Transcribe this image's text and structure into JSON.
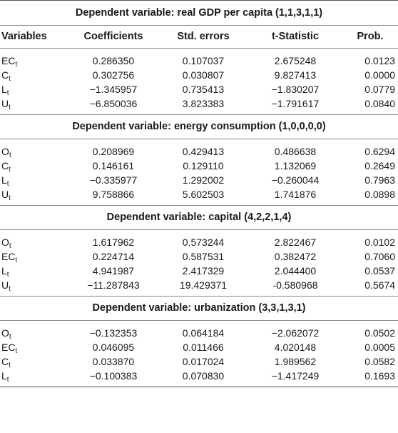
{
  "headers": {
    "variables": "Variables",
    "coefficients": "Coefficients",
    "std_errors": "Std. errors",
    "t_statistic": "t-Statistic",
    "prob": "Prob."
  },
  "sections": [
    {
      "title": "Dependent variable: real GDP per capita (1,1,3,1,1)",
      "rows": [
        {
          "var": "EC",
          "sub": "t",
          "coef": "0.286350",
          "se": "0.107037",
          "t": "2.675248",
          "p": "0.0123"
        },
        {
          "var": "C",
          "sub": "t",
          "coef": "0.302756",
          "se": "0.030807",
          "t": "9.827413",
          "p": "0.0000"
        },
        {
          "var": "L",
          "sub": "t",
          "coef": "−1.345957",
          "se": "0.735413",
          "t": "−1.830207",
          "p": "0.0779"
        },
        {
          "var": "U",
          "sub": "t",
          "coef": "−6.850036",
          "se": "3.823383",
          "t": "−1.791617",
          "p": "0.0840"
        }
      ]
    },
    {
      "title": "Dependent variable: energy consumption (1,0,0,0,0)",
      "rows": [
        {
          "var": "O",
          "sub": "t",
          "coef": "0.208969",
          "se": "0.429413",
          "t": "0.486638",
          "p": "0.6294"
        },
        {
          "var": "C",
          "sub": "t",
          "coef": "0.146161",
          "se": "0.129110",
          "t": "1.132069",
          "p": "0.2649"
        },
        {
          "var": "L",
          "sub": "t",
          "coef": "−0.335977",
          "se": "1.292002",
          "t": "−0.260044",
          "p": "0.7963"
        },
        {
          "var": "U",
          "sub": "t",
          "coef": "9.758866",
          "se": "5.602503",
          "t": "1.741876",
          "p": "0.0898"
        }
      ]
    },
    {
      "title": "Dependent variable: capital (4,2,2,1,4)",
      "rows": [
        {
          "var": "O",
          "sub": "t",
          "coef": "1.617962",
          "se": "0.573244",
          "t": "2.822467",
          "p": "0.0102"
        },
        {
          "var": "EC",
          "sub": "t",
          "coef": "0.224714",
          "se": "0.587531",
          "t": "0.382472",
          "p": "0.7060"
        },
        {
          "var": "L",
          "sub": "t",
          "coef": "4.941987",
          "se": "2.417329",
          "t": "2.044400",
          "p": "0.0537"
        },
        {
          "var": "U",
          "sub": "t",
          "coef": "−11.287843",
          "se": "19.429371",
          "t": "-0.580968",
          "p": "0.5674"
        }
      ]
    },
    {
      "title": "Dependent variable: urbanization (3,3,1,3,1)",
      "rows": [
        {
          "var": "O",
          "sub": "t",
          "coef": "−0.132353",
          "se": "0.064184",
          "t": "−2.062072",
          "p": "0.0502"
        },
        {
          "var": "EC",
          "sub": "t",
          "coef": "0.046095",
          "se": "0.011466",
          "t": "4.020148",
          "p": "0.0005"
        },
        {
          "var": "C",
          "sub": "t",
          "coef": "0.033870",
          "se": "0.017024",
          "t": "1.989562",
          "p": "0.0582"
        },
        {
          "var": "L",
          "sub": "t",
          "coef": "−0.100383",
          "se": "0.070830",
          "t": "−1.417249",
          "p": "0.1693"
        }
      ]
    }
  ]
}
